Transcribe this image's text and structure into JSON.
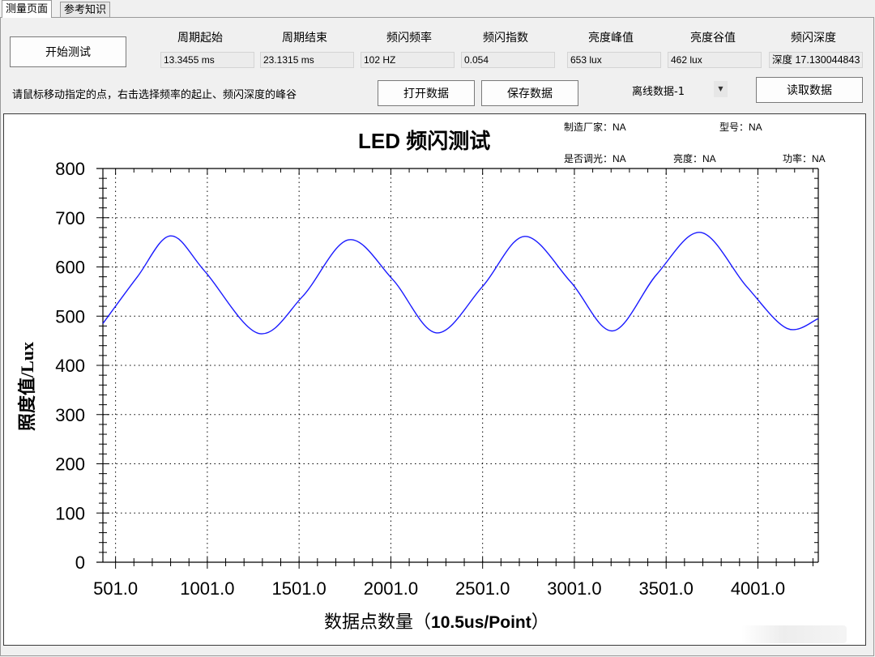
{
  "tabs": [
    {
      "label": "测量页面",
      "active": true
    },
    {
      "label": "参考知识",
      "active": false
    }
  ],
  "toolbar": {
    "start_button": "开始测试",
    "hint": "请鼠标移动指定的点，右击选择频率的起止、频闪深度的峰谷",
    "open_button": "打开数据",
    "save_button": "保存数据",
    "offline_select": "离线数据-1",
    "read_button": "读取数据"
  },
  "fields": [
    {
      "label": "周期起始",
      "value": "13.3455 ms"
    },
    {
      "label": "周期结束",
      "value": "23.1315 ms"
    },
    {
      "label": "频闪频率",
      "value": "102 HZ"
    },
    {
      "label": "频闪指数",
      "value": "0.054"
    },
    {
      "label": "亮度峰值",
      "value": "653 lux"
    },
    {
      "label": "亮度谷值",
      "value": "462 lux"
    },
    {
      "label": "频闪深度",
      "value": "深度 17.130044843"
    }
  ],
  "chart_meta": {
    "manufacturer_label": "制造厂家：",
    "manufacturer": "NA",
    "model_label": "型号：",
    "model": "NA",
    "dimming_label": "是否调光：",
    "dimming": "NA",
    "brightness_label": "亮度：",
    "brightness": "NA",
    "power_label": "功率：",
    "power": "NA"
  },
  "colors": {
    "series": "#1a1aff",
    "axis": "#000000",
    "grid": "#000000"
  },
  "chart_data": {
    "type": "line",
    "title": "LED 频闪测试",
    "xlabel_prefix": "数据点数量（",
    "xlabel_bold": "10.5us/Point",
    "xlabel_suffix": "）",
    "ylabel": "照度值/Lux",
    "xlim": [
      432,
      4330
    ],
    "ylim": [
      0,
      800
    ],
    "x_ticks": [
      "501.0",
      "1001.0",
      "1501.0",
      "2001.0",
      "2501.0",
      "3001.0",
      "3501.0",
      "4001.0"
    ],
    "x_tick_values": [
      501,
      1001,
      1501,
      2001,
      2501,
      3001,
      3501,
      4001
    ],
    "y_ticks": [
      "0",
      "100",
      "200",
      "300",
      "400",
      "500",
      "600",
      "700",
      "800"
    ],
    "y_tick_values": [
      0,
      100,
      200,
      300,
      400,
      500,
      600,
      700,
      800
    ],
    "grid": true,
    "legend": null,
    "series": [
      {
        "name": "illuminance",
        "x": [
          432,
          620,
          800,
          990,
          1280,
          1520,
          1770,
          2010,
          2250,
          2500,
          2730,
          2980,
          3210,
          3450,
          3690,
          3940,
          4160,
          4330
        ],
        "values": [
          485,
          580,
          663,
          590,
          465,
          540,
          655,
          575,
          466,
          560,
          662,
          570,
          470,
          585,
          670,
          560,
          475,
          495
        ]
      }
    ],
    "peaks": [
      663,
      655,
      662,
      670
    ],
    "troughs": [
      465,
      466,
      470,
      475
    ]
  }
}
